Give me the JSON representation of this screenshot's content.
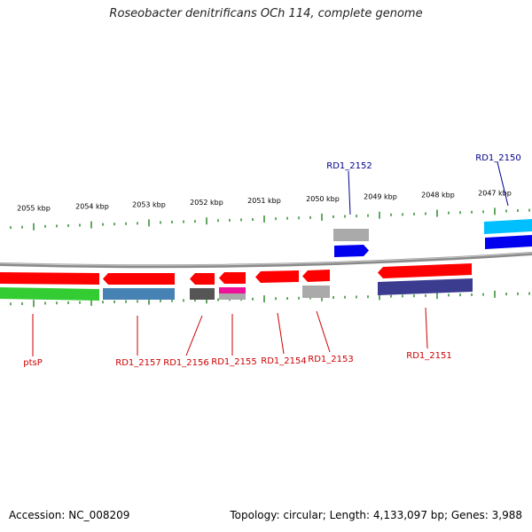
{
  "title": "Roseobacter denitrificans OCh 114, complete genome",
  "footer": {
    "accession": "Accession: NC_008209",
    "topology": "Topology: circular; Length: 4,133,097 bp; Genes: 3,988"
  },
  "colors": {
    "backbone": "#8a8a8a",
    "tick": "#2e8b2e",
    "label_reverse": "#cc0000",
    "label_forward": "#00008b",
    "gene_red": "#ff0000",
    "gene_blue": "#0000ee",
    "gene_cyan": "#00bfff",
    "gene_green": "#33cc33",
    "gene_steel": "#4682b4",
    "gene_gray": "#aaaaaa",
    "gene_dark": "#555555",
    "gene_magenta": "#ee1199",
    "gene_navy": "#3b3b8f"
  },
  "kbp_labels": [
    "2055 kbp",
    "2054 kbp",
    "2053 kbp",
    "2052 kbp",
    "2051 kbp",
    "2050 kbp",
    "2049 kbp",
    "2048 kbp",
    "2047 kbp"
  ],
  "genes": [
    {
      "label": "ptsP",
      "strand": "reverse"
    },
    {
      "label": "RD1_2157",
      "strand": "reverse"
    },
    {
      "label": "RD1_2156",
      "strand": "reverse"
    },
    {
      "label": "RD1_2155",
      "strand": "reverse"
    },
    {
      "label": "RD1_2154",
      "strand": "reverse"
    },
    {
      "label": "RD1_2153",
      "strand": "reverse"
    },
    {
      "label": "RD1_2152",
      "strand": "forward"
    },
    {
      "label": "RD1_2151",
      "strand": "reverse"
    },
    {
      "label": "RD1_2150",
      "strand": "forward"
    }
  ]
}
